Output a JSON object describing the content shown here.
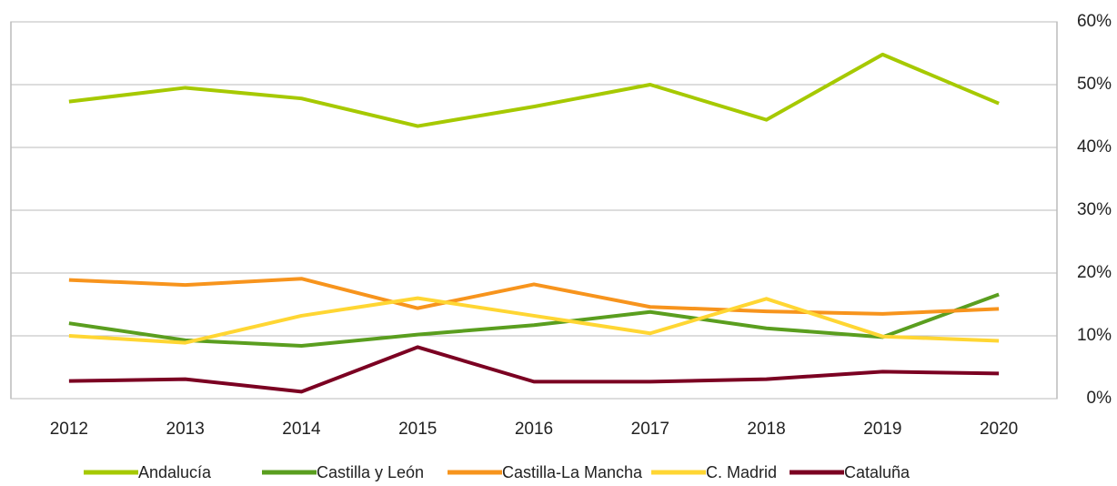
{
  "chart_data": {
    "type": "line",
    "categories": [
      "2012",
      "2013",
      "2014",
      "2015",
      "2016",
      "2017",
      "2018",
      "2019",
      "2020"
    ],
    "series": [
      {
        "name": "Andalucía",
        "color": "#a6c900",
        "values": [
          47.3,
          49.5,
          47.8,
          43.4,
          46.5,
          50.0,
          44.4,
          54.8,
          47.0
        ]
      },
      {
        "name": "Castilla y León",
        "color": "#5a9e1f",
        "values": [
          12.0,
          9.3,
          8.4,
          10.2,
          11.7,
          13.8,
          11.2,
          9.8,
          16.6
        ]
      },
      {
        "name": "Castilla-La Mancha",
        "color": "#f7941d",
        "values": [
          18.9,
          18.1,
          19.1,
          14.4,
          18.2,
          14.6,
          13.9,
          13.5,
          14.3
        ]
      },
      {
        "name": "C. Madrid",
        "color": "#ffd633",
        "values": [
          10.0,
          8.9,
          13.2,
          16.0,
          13.2,
          10.4,
          15.9,
          9.9,
          9.2
        ]
      },
      {
        "name": "Cataluña",
        "color": "#7b0022",
        "values": [
          2.8,
          3.1,
          1.1,
          8.2,
          2.7,
          2.7,
          3.1,
          4.3,
          4.0
        ]
      }
    ],
    "ylim": [
      0,
      60
    ],
    "yticks": [
      {
        "value": 0,
        "label": "0%"
      },
      {
        "value": 10,
        "label": "10%"
      },
      {
        "value": 20,
        "label": "20%"
      },
      {
        "value": 30,
        "label": "30%"
      },
      {
        "value": 40,
        "label": "40%"
      },
      {
        "value": 50,
        "label": "50%"
      },
      {
        "value": 60,
        "label": "60%"
      }
    ],
    "grid": true,
    "legend": "bottom"
  }
}
